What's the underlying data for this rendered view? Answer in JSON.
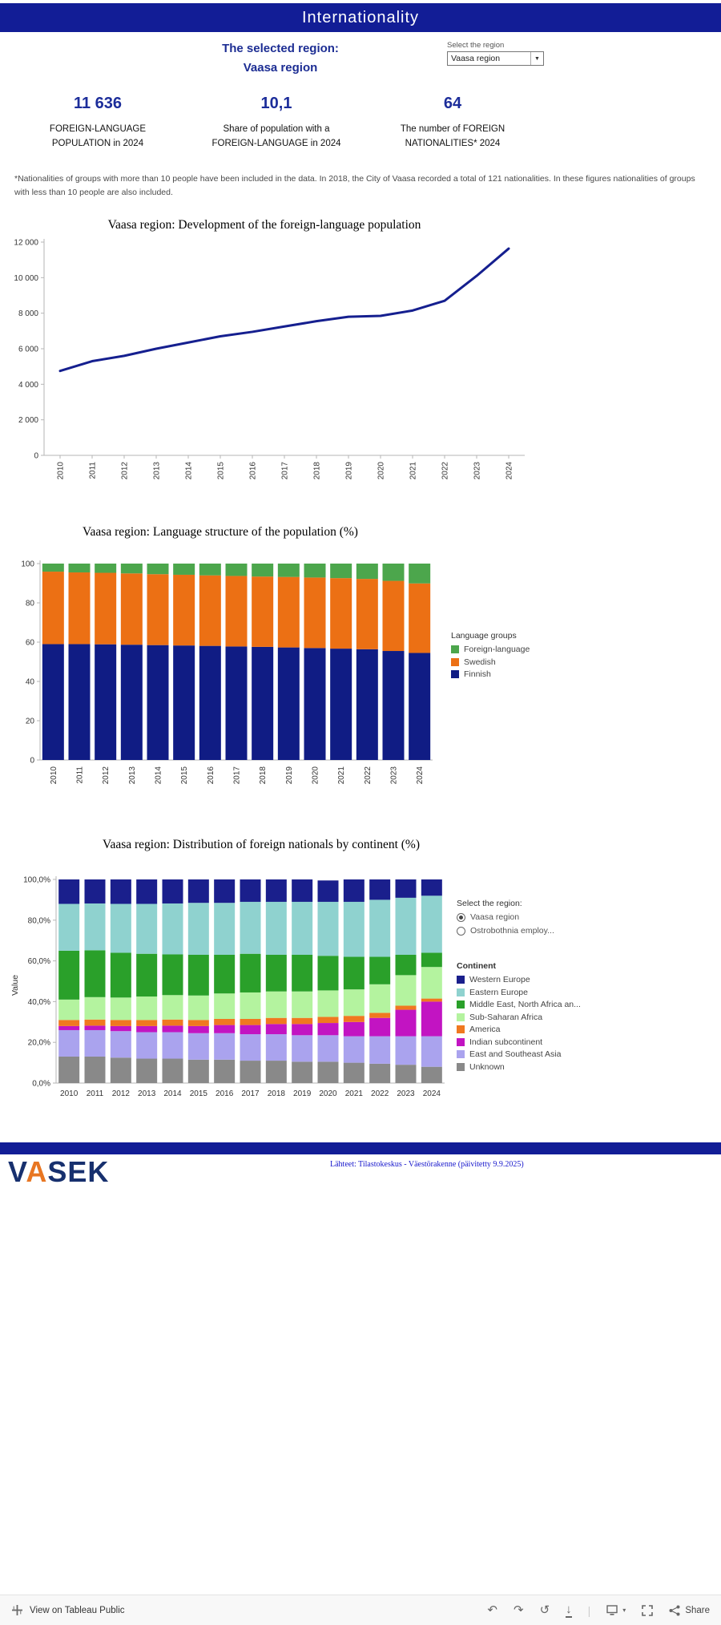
{
  "header": {
    "title": "Internationality"
  },
  "region_panel": {
    "selected_line1": "The selected region:",
    "selected_line2": "Vaasa region",
    "dropdown_label": "Select the region",
    "dropdown_value": "Vaasa region"
  },
  "kpis": [
    {
      "value": "11 636",
      "label": "FOREIGN-LANGUAGE POPULATION in 2024"
    },
    {
      "value": "10,1",
      "label": "Share of population with a FOREIGN-LANGUAGE in 2024"
    },
    {
      "value": "64",
      "label": "The number of FOREIGN NATIONALITIES* 2024"
    }
  ],
  "footnote": "*Nationalities of groups with more than 10 people have been included in the data. In 2018, the City of Vaasa recorded a total of 121 nationalities. In these figures nationalities of groups with less than 10 people are also included.",
  "region_radio": {
    "label": "Select the region:",
    "options": [
      {
        "label": "Vaasa region",
        "selected": true
      },
      {
        "label": "Ostrobothnia employ...",
        "selected": false
      }
    ]
  },
  "footer": {
    "logo_text": "VASEK",
    "source": "Lähteet: Tilastokeskus -  Väestörakenne (päivitetty 9.9.2025)"
  },
  "toolbar": {
    "view_label": "View on Tableau Public",
    "share_label": "Share"
  },
  "chart_data": [
    {
      "type": "line",
      "title": "Vaasa region: Development of the foreign-language population",
      "x": [
        2010,
        2011,
        2012,
        2013,
        2014,
        2015,
        2016,
        2017,
        2018,
        2019,
        2020,
        2021,
        2022,
        2023,
        2024
      ],
      "values": [
        4750,
        5300,
        5600,
        6000,
        6350,
        6700,
        6950,
        7250,
        7550,
        7800,
        7850,
        8150,
        8700,
        10100,
        11636
      ],
      "ylim": [
        0,
        12000
      ],
      "yticks": [
        0,
        2000,
        4000,
        6000,
        8000,
        10000,
        12000
      ],
      "ytick_labels": [
        "0",
        "2 000",
        "4 000",
        "6 000",
        "8 000",
        "10 000",
        "12 000"
      ],
      "line_color": "#151f8f",
      "grid": false
    },
    {
      "type": "stacked_bar",
      "title": "Vaasa region: Language structure of the population (%)",
      "categories": [
        2010,
        2011,
        2012,
        2013,
        2014,
        2015,
        2016,
        2017,
        2018,
        2019,
        2020,
        2021,
        2022,
        2023,
        2024
      ],
      "ylim": [
        0,
        100
      ],
      "yticks": [
        0,
        20,
        40,
        60,
        80,
        100
      ],
      "series": [
        {
          "name": "Finnish",
          "color": "#101c84",
          "values": [
            59.0,
            59.0,
            58.9,
            58.7,
            58.5,
            58.3,
            58.1,
            57.8,
            57.6,
            57.3,
            57.0,
            56.7,
            56.4,
            55.5,
            54.5
          ]
        },
        {
          "name": "Swedish",
          "color": "#ec7014",
          "values": [
            36.9,
            36.5,
            36.4,
            36.3,
            36.1,
            36.0,
            35.9,
            35.9,
            35.8,
            35.9,
            35.9,
            35.9,
            35.8,
            35.7,
            35.4
          ]
        },
        {
          "name": "Foreign-language",
          "color": "#4ca64c",
          "values": [
            4.1,
            4.5,
            4.7,
            5.0,
            5.4,
            5.7,
            6.0,
            6.3,
            6.6,
            6.8,
            7.1,
            7.4,
            7.8,
            8.8,
            10.1
          ]
        }
      ],
      "legend": {
        "title": "Language groups",
        "items": [
          {
            "label": "Foreign-language",
            "color": "#4ca64c"
          },
          {
            "label": "Swedish",
            "color": "#ec7014"
          },
          {
            "label": "Finnish",
            "color": "#101c84"
          }
        ]
      }
    },
    {
      "type": "stacked_bar",
      "title": "Vaasa region: Distribution of foreign nationals by continent (%)",
      "ylabel": "Value",
      "categories": [
        2010,
        2011,
        2012,
        2013,
        2014,
        2015,
        2016,
        2017,
        2018,
        2019,
        2020,
        2021,
        2022,
        2023,
        2024
      ],
      "ylim": [
        0,
        100
      ],
      "yticks": [
        0,
        20,
        40,
        60,
        80,
        100
      ],
      "ytick_labels": [
        "0,0%",
        "20,0%",
        "40,0%",
        "60,0%",
        "80,0%",
        "100,0%"
      ],
      "series": [
        {
          "name": "Unknown",
          "color": "#898989",
          "values": [
            13,
            13,
            12.5,
            12,
            12,
            11.5,
            11.5,
            11,
            11,
            10.5,
            10.5,
            10,
            9.5,
            9,
            8
          ]
        },
        {
          "name": "East and Southeast Asia",
          "color": "#aaa3ee",
          "values": [
            13,
            13,
            13,
            13,
            13,
            13,
            13,
            13,
            13,
            13,
            13,
            13,
            13.5,
            14,
            15
          ]
        },
        {
          "name": "Indian subcontinent",
          "color": "#c214c2",
          "values": [
            2,
            2.2,
            2.5,
            3,
            3.2,
            3.5,
            4,
            4.5,
            5,
            5.5,
            6,
            7,
            9,
            13,
            17
          ]
        },
        {
          "name": "America",
          "color": "#f07820",
          "values": [
            3,
            3,
            3,
            3,
            3,
            3,
            3,
            3,
            3,
            3,
            3,
            3,
            2.5,
            2,
            1.5
          ]
        },
        {
          "name": "Sub-Saharan Africa",
          "color": "#b4f39f",
          "values": [
            10,
            11,
            11,
            11.5,
            12,
            12,
            12.5,
            13,
            13,
            13,
            13,
            13,
            14,
            15,
            15.5
          ]
        },
        {
          "name": "Middle East, North Africa an...",
          "color": "#2aa02a",
          "values": [
            24,
            23,
            22,
            21,
            20,
            20,
            19,
            19,
            18,
            18,
            17,
            16,
            13.5,
            10,
            7
          ]
        },
        {
          "name": "Eastern Europe",
          "color": "#8fd2cf",
          "values": [
            23,
            23,
            24,
            24.5,
            25,
            25.5,
            25.5,
            25.5,
            26,
            26,
            26.5,
            27,
            28,
            28,
            28
          ]
        },
        {
          "name": "Western Europe",
          "color": "#1a1f8c",
          "values": [
            12,
            11.8,
            12,
            12,
            11.8,
            11.5,
            11.5,
            11,
            11,
            11,
            10.5,
            11,
            10,
            9,
            8
          ]
        }
      ],
      "legend": {
        "title": "Continent",
        "items": [
          {
            "label": "Western Europe",
            "color": "#1a1f8c"
          },
          {
            "label": "Eastern Europe",
            "color": "#8fd2cf"
          },
          {
            "label": "Middle East, North Africa an...",
            "color": "#2aa02a"
          },
          {
            "label": "Sub-Saharan Africa",
            "color": "#b4f39f"
          },
          {
            "label": "America",
            "color": "#f07820"
          },
          {
            "label": "Indian subcontinent",
            "color": "#c214c2"
          },
          {
            "label": "East and Southeast Asia",
            "color": "#aaa3ee"
          },
          {
            "label": "Unknown",
            "color": "#898989"
          }
        ]
      }
    }
  ]
}
